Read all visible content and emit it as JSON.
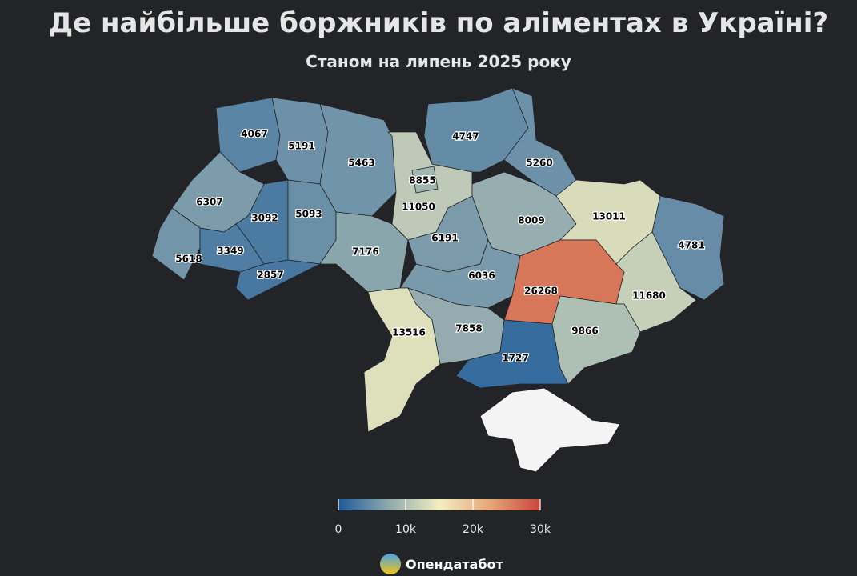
{
  "header": {
    "title": "Де найбільше боржників по аліментах в Україні?",
    "subtitle": "Станом на липень 2025 року"
  },
  "map": {
    "values": [
      4067,
      5191,
      5463,
      11050,
      8855,
      4747,
      5260,
      6307,
      3092,
      5093,
      7176,
      6191,
      8009,
      13011,
      4781,
      5618,
      3349,
      2857,
      6036,
      26268,
      11680,
      13516,
      7858,
      1727,
      9866
    ],
    "colors": [
      "#1d5a9a",
      "#8fa9ae",
      "#f2eec0",
      "#e6a779",
      "#c8463a"
    ],
    "colorbar_lim": [
      0,
      30000
    ],
    "colorbar_ticks": [
      0,
      {
        "value": 10000,
        "label": "10k"
      },
      {
        "value": 20000,
        "label": "20k"
      },
      {
        "value": 30000,
        "label": "30k"
      }
    ]
  },
  "footer": {
    "brand": "Опендатабот"
  }
}
